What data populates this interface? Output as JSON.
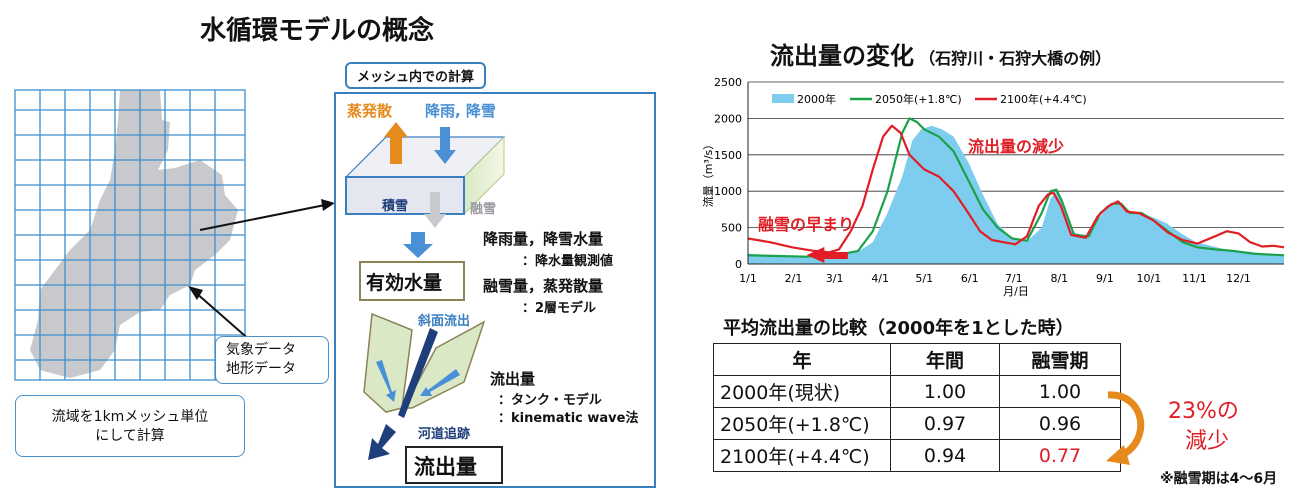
{
  "left_panel": {
    "title": "水循環モデルの概念",
    "calc_box_label": "メッシュ内での計算",
    "evaporation": "蒸発散",
    "rain_snow": "降雨, 降雪",
    "snowpack": "積雪",
    "snowmelt": "融雪",
    "rain_snow_amount": "降雨量，降雪水量",
    "observed": "：降水量観測値",
    "effective_water": "有効水量",
    "melt_evap": "融雪量，蒸発散量",
    "two_layer": "：2層モデル",
    "slope_flow": "斜面流出",
    "runoff_amount": "流出量",
    "tank_model": "：タンク・モデル",
    "kinematic": "：kinematic wave法",
    "channel_routing": "河道追跡",
    "runoff_box": "流出量",
    "weather_line1": "気象データ",
    "weather_line2": "地形データ",
    "mesh_line1": "流域を1kmメッシュ単位",
    "mesh_line2": "にして計算"
  },
  "chart_data": {
    "type": "line",
    "title": "流出量の変化",
    "subtitle": "（石狩川・石狩大橋の例）",
    "xlabel": "月/日",
    "ylabel": "流量（m³/s）",
    "ylim": [
      0,
      2500
    ],
    "yticks": [
      "0",
      "500",
      "1000",
      "1500",
      "2000",
      "2500"
    ],
    "xticks": [
      "1/1",
      "2/1",
      "3/1",
      "4/1",
      "5/1",
      "6/1",
      "7/1",
      "8/1",
      "9/1",
      "10/1",
      "11/1",
      "12/1"
    ],
    "grid": true,
    "legend": "top-left",
    "series": [
      {
        "name": "2000年",
        "style": "area",
        "color": "#7fcdee",
        "points": [
          [
            0,
            140
          ],
          [
            20,
            120
          ],
          [
            40,
            100
          ],
          [
            55,
            130
          ],
          [
            65,
            150
          ],
          [
            75,
            170
          ],
          [
            85,
            300
          ],
          [
            95,
            700
          ],
          [
            105,
            1200
          ],
          [
            112,
            1700
          ],
          [
            118,
            1850
          ],
          [
            125,
            1900
          ],
          [
            132,
            1850
          ],
          [
            140,
            1750
          ],
          [
            150,
            1400
          ],
          [
            160,
            950
          ],
          [
            170,
            550
          ],
          [
            180,
            350
          ],
          [
            190,
            310
          ],
          [
            200,
            500
          ],
          [
            206,
            900
          ],
          [
            210,
            1000
          ],
          [
            214,
            900
          ],
          [
            220,
            450
          ],
          [
            230,
            380
          ],
          [
            238,
            600
          ],
          [
            245,
            780
          ],
          [
            252,
            830
          ],
          [
            258,
            700
          ],
          [
            265,
            700
          ],
          [
            275,
            650
          ],
          [
            285,
            560
          ],
          [
            295,
            420
          ],
          [
            305,
            300
          ],
          [
            315,
            250
          ],
          [
            325,
            200
          ],
          [
            335,
            180
          ],
          [
            350,
            150
          ],
          [
            365,
            120
          ]
        ]
      },
      {
        "name": "2050年(+1.8℃)",
        "style": "line",
        "color": "#1aa24a",
        "points": [
          [
            0,
            120
          ],
          [
            20,
            110
          ],
          [
            40,
            100
          ],
          [
            55,
            120
          ],
          [
            65,
            140
          ],
          [
            75,
            180
          ],
          [
            85,
            450
          ],
          [
            95,
            1000
          ],
          [
            105,
            1800
          ],
          [
            110,
            2000
          ],
          [
            115,
            1950
          ],
          [
            120,
            1850
          ],
          [
            130,
            1750
          ],
          [
            140,
            1550
          ],
          [
            150,
            1150
          ],
          [
            160,
            750
          ],
          [
            170,
            500
          ],
          [
            180,
            350
          ],
          [
            190,
            320
          ],
          [
            200,
            700
          ],
          [
            206,
            1000
          ],
          [
            210,
            1020
          ],
          [
            214,
            850
          ],
          [
            222,
            400
          ],
          [
            232,
            380
          ],
          [
            240,
            700
          ],
          [
            248,
            830
          ],
          [
            254,
            830
          ],
          [
            260,
            700
          ],
          [
            268,
            700
          ],
          [
            276,
            600
          ],
          [
            286,
            450
          ],
          [
            296,
            300
          ],
          [
            306,
            230
          ],
          [
            318,
            200
          ],
          [
            330,
            180
          ],
          [
            345,
            140
          ],
          [
            365,
            120
          ]
        ]
      },
      {
        "name": "2100年(+4.4℃)",
        "style": "line",
        "color": "#e11d25",
        "points": [
          [
            0,
            350
          ],
          [
            15,
            300
          ],
          [
            30,
            230
          ],
          [
            45,
            180
          ],
          [
            55,
            160
          ],
          [
            62,
            200
          ],
          [
            70,
            450
          ],
          [
            78,
            800
          ],
          [
            85,
            1300
          ],
          [
            92,
            1750
          ],
          [
            98,
            1900
          ],
          [
            104,
            1800
          ],
          [
            110,
            1500
          ],
          [
            120,
            1300
          ],
          [
            130,
            1200
          ],
          [
            140,
            1000
          ],
          [
            150,
            700
          ],
          [
            158,
            450
          ],
          [
            166,
            330
          ],
          [
            174,
            300
          ],
          [
            182,
            270
          ],
          [
            190,
            380
          ],
          [
            198,
            800
          ],
          [
            204,
            950
          ],
          [
            208,
            980
          ],
          [
            213,
            800
          ],
          [
            220,
            400
          ],
          [
            230,
            360
          ],
          [
            238,
            650
          ],
          [
            245,
            790
          ],
          [
            252,
            860
          ],
          [
            258,
            720
          ],
          [
            266,
            700
          ],
          [
            276,
            600
          ],
          [
            286,
            430
          ],
          [
            296,
            330
          ],
          [
            306,
            280
          ],
          [
            318,
            380
          ],
          [
            326,
            450
          ],
          [
            334,
            420
          ],
          [
            342,
            300
          ],
          [
            350,
            240
          ],
          [
            358,
            250
          ],
          [
            365,
            230
          ]
        ]
      }
    ]
  },
  "annotations": {
    "reduction": "流出量の減少",
    "early_melt": "融雪の早まり",
    "percent_line1": "23%の",
    "percent_line2": "減少",
    "melt_season_note": "※融雪期は4～6月"
  },
  "table": {
    "title": "平均流出量の比較（2000年を1とした時）",
    "headers": [
      "年",
      "年間",
      "融雪期"
    ],
    "rows": [
      {
        "year": "2000年(現状)",
        "annual": "1.00",
        "melt": "1.00"
      },
      {
        "year": "2050年(+1.8℃)",
        "annual": "0.97",
        "melt": "0.96"
      },
      {
        "year": "2100年(+4.4℃)",
        "annual": "0.94",
        "melt": "0.77"
      }
    ]
  },
  "colors": {
    "mesh_fill": "#c8c9cc",
    "grid_blue": "#3d8fcc",
    "arrow_orange": "#e68a1e",
    "arrow_blue": "#4a90d6",
    "dark_blue": "#1f3f7a",
    "red": "#e11d25"
  }
}
